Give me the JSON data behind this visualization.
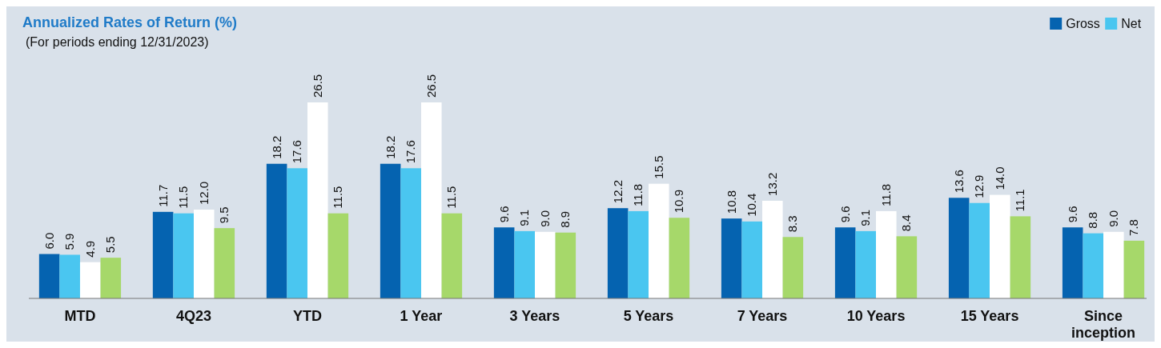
{
  "chart_data": {
    "type": "bar",
    "title": "Annualized Rates of Return (%)",
    "subtitle": "(For periods ending 12/31/2023)",
    "categories": [
      "MTD",
      "4Q23",
      "YTD",
      "1 Year",
      "3 Years",
      "5 Years",
      "7 Years",
      "10 Years",
      "15 Years",
      "Since inception"
    ],
    "series": [
      {
        "name": "Gross",
        "color": "#0563b0",
        "values": [
          6.0,
          11.7,
          18.2,
          18.2,
          9.6,
          12.2,
          10.8,
          9.6,
          13.6,
          9.6
        ],
        "value_labels": [
          "6.0",
          "11.7",
          "18.2",
          "18.2",
          "9.6",
          "12.2",
          "10.8",
          "9.6",
          "13.6",
          "9.6"
        ]
      },
      {
        "name": "Net",
        "color": "#4ac6f0",
        "values": [
          5.9,
          11.5,
          17.6,
          17.6,
          9.1,
          11.8,
          10.4,
          9.1,
          12.9,
          8.8
        ],
        "value_labels": [
          "5.9",
          "11.5",
          "17.6",
          "17.6",
          "9.1",
          "11.8",
          "10.4",
          "9.1",
          "12.9",
          "8.8"
        ]
      },
      {
        "color": "#ffffff",
        "values": [
          4.9,
          12.0,
          26.5,
          26.5,
          9.0,
          15.5,
          13.2,
          11.8,
          14.0,
          9.0
        ],
        "value_labels": [
          "4.9",
          "12.0",
          "26.5",
          "26.5",
          "9.0",
          "15.5",
          "13.2",
          "11.8",
          "14.0",
          "9.0"
        ]
      },
      {
        "color": "#a6d86a",
        "values": [
          5.5,
          9.5,
          11.5,
          11.5,
          8.9,
          10.9,
          8.3,
          8.4,
          11.1,
          7.8
        ],
        "value_labels": [
          "5.5",
          "9.5",
          "11.5",
          "11.5",
          "8.9",
          "10.9",
          "8.3",
          "8.4",
          "11.1",
          "7.8"
        ]
      }
    ],
    "legend": "top right"
  }
}
